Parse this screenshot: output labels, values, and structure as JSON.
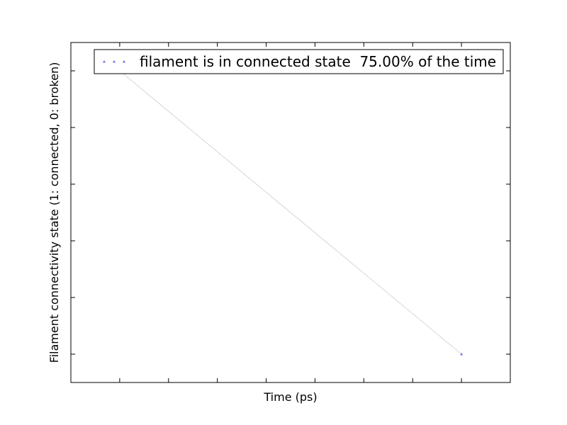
{
  "chart_data": {
    "type": "scatter",
    "title": "",
    "xlabel": "Time (ps)",
    "ylabel": "Filament connectivity state (1: connected, 0: broken)",
    "xlim": [
      0,
      9
    ],
    "ylim": [
      -0.1,
      1.1
    ],
    "x_ticks": [
      1,
      2,
      3,
      4,
      5,
      6,
      7,
      8
    ],
    "y_ticks": [
      0.0,
      0.2,
      0.4,
      0.6,
      0.8,
      1.0
    ],
    "grid": false,
    "legend_position": "top-right",
    "series": [
      {
        "name": "filament is in connected state  75.00% of the time",
        "x": [
          1,
          1,
          1,
          8
        ],
        "y": [
          1,
          1,
          1,
          0
        ],
        "marker": "triangle",
        "color": "#3b3bd6",
        "line_color": "#cccccc"
      }
    ]
  }
}
